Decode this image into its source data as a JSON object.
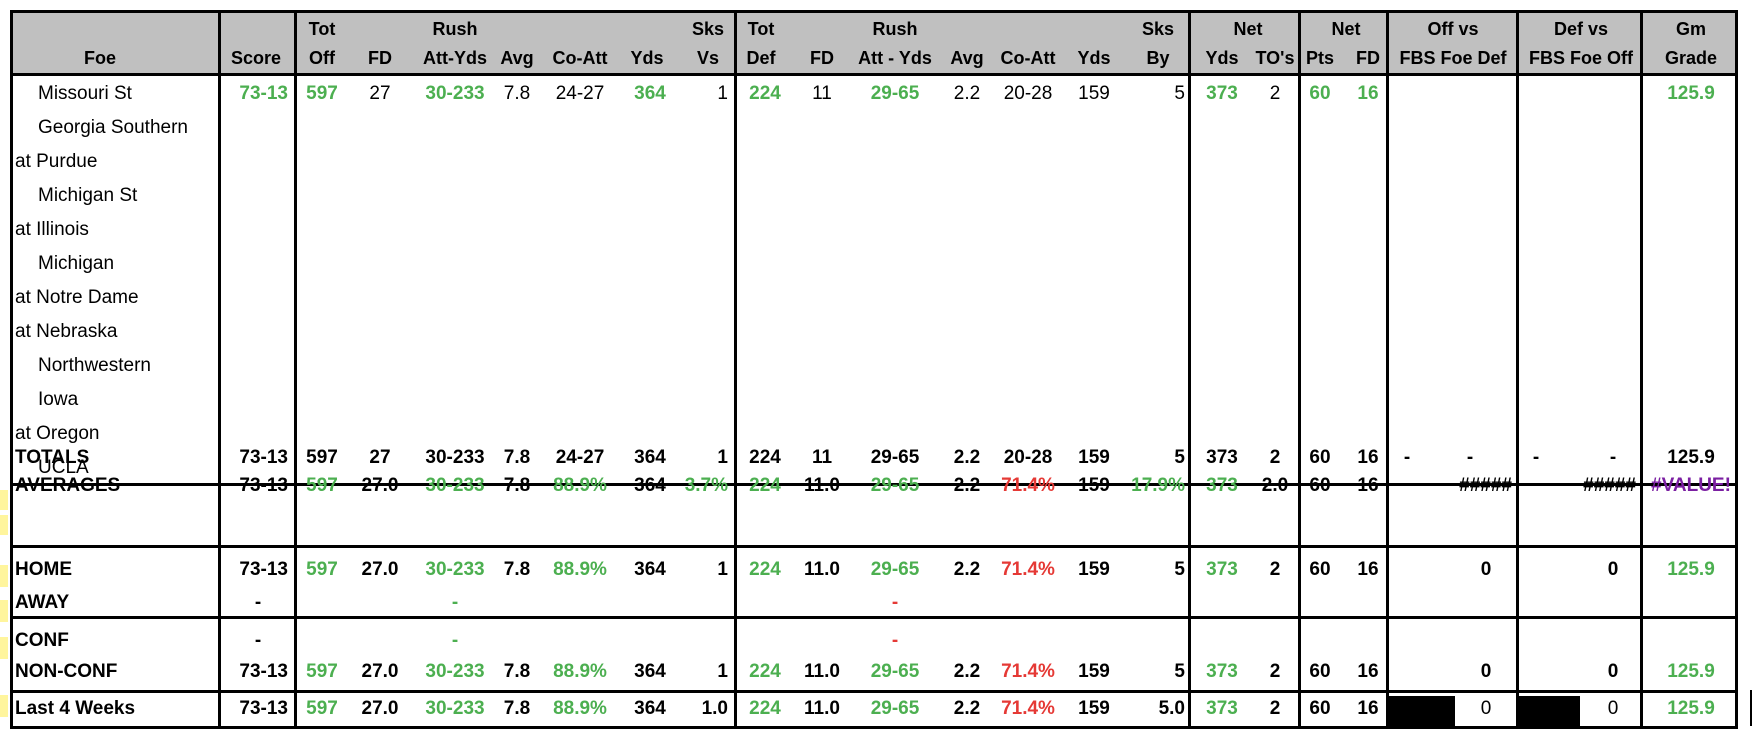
{
  "header": {
    "top": [
      "Tot",
      "Rush",
      "Sks",
      "Tot",
      "Rush",
      "Sks",
      "Net",
      "Net",
      "Off vs",
      "Def vs",
      "Gm"
    ],
    "bottom": [
      "Foe",
      "Score",
      "Off",
      "FD",
      "Att-Yds",
      "Avg",
      "Co-Att",
      "Yds",
      "Vs",
      "Def",
      "FD",
      "Att - Yds",
      "Avg",
      "Co-Att",
      "Yds",
      "By",
      "Yds",
      "TO's",
      "Pts",
      "FD",
      "FBS Foe Def",
      "FBS Foe Off",
      "Grade"
    ]
  },
  "foes": [
    "  Missouri St",
    "  Georgia Southern",
    "at Purdue",
    "  Michigan St",
    "at Illinois",
    "  Michigan",
    "at Notre Dame",
    "at Nebraska",
    "  Northwestern",
    "  Iowa",
    "at Oregon",
    "  UCLA"
  ],
  "game1": {
    "score": "73-13",
    "tot_off": "597",
    "fd": "27",
    "rush": "30-233",
    "avg": "7.8",
    "co_att": "24-27",
    "yds": "364",
    "sks_vs": "1",
    "tot_def": "224",
    "dfd": "11",
    "drush": "29-65",
    "davg": "2.2",
    "dco_att": "20-28",
    "dyds": "159",
    "sks_by": "5",
    "net_yds": "373",
    "tos": "2",
    "net_pts": "60",
    "net_fd": "16",
    "grade": "125.9"
  },
  "totals": {
    "label": "TOTALS",
    "score": "73-13",
    "tot_off": "597",
    "fd": "27",
    "rush": "30-233",
    "avg": "7.8",
    "co_att": "24-27",
    "yds": "364",
    "sks_vs": "1",
    "tot_def": "224",
    "dfd": "11",
    "drush": "29-65",
    "davg": "2.2",
    "dco_att": "20-28",
    "dyds": "159",
    "sks_by": "5",
    "net_yds": "373",
    "tos": "2",
    "net_pts": "60",
    "net_fd": "16",
    "off_a": "-",
    "off_b": "-",
    "def_a": "-",
    "def_b": "-",
    "grade": "125.9"
  },
  "averages": {
    "label": "AVERAGES",
    "score": "73-13",
    "tot_off": "597",
    "fd": "27.0",
    "rush": "30-233",
    "avg": "7.8",
    "co_att": "88.9%",
    "yds": "364",
    "sks_vs": "3.7%",
    "tot_def": "224",
    "dfd": "11.0",
    "drush": "29-65",
    "davg": "2.2",
    "dco_att": "71.4%",
    "dyds": "159",
    "sks_by": "17.9%",
    "net_yds": "373",
    "tos": "2.0",
    "net_pts": "60",
    "net_fd": "16",
    "off": "#####",
    "def": "#####",
    "grade": "#VALUE!"
  },
  "home": {
    "label": "HOME",
    "score": "73-13",
    "tot_off": "597",
    "fd": "27.0",
    "rush": "30-233",
    "avg": "7.8",
    "co_att": "88.9%",
    "yds": "364",
    "sks_vs": "1",
    "tot_def": "224",
    "dfd": "11.0",
    "drush": "29-65",
    "davg": "2.2",
    "dco_att": "71.4%",
    "dyds": "159",
    "sks_by": "5",
    "net_yds": "373",
    "tos": "2",
    "net_pts": "60",
    "net_fd": "16",
    "off": "0",
    "def": "0",
    "grade": "125.9"
  },
  "away": {
    "label": "AWAY",
    "score": "-",
    "rush": "-",
    "drush": "-"
  },
  "conf": {
    "label": "CONF",
    "score": "-",
    "rush": "-",
    "drush": "-"
  },
  "nonconf": {
    "label": "NON-CONF",
    "score": "73-13",
    "tot_off": "597",
    "fd": "27.0",
    "rush": "30-233",
    "avg": "7.8",
    "co_att": "88.9%",
    "yds": "364",
    "sks_vs": "1",
    "tot_def": "224",
    "dfd": "11.0",
    "drush": "29-65",
    "davg": "2.2",
    "dco_att": "71.4%",
    "dyds": "159",
    "sks_by": "5",
    "net_yds": "373",
    "tos": "2",
    "net_pts": "60",
    "net_fd": "16",
    "off": "0",
    "def": "0",
    "grade": "125.9"
  },
  "last4": {
    "label": "Last 4 Weeks",
    "score": "73-13",
    "tot_off": "597",
    "fd": "27.0",
    "rush": "30-233",
    "avg": "7.8",
    "co_att": "88.9%",
    "yds": "364",
    "sks_vs": "1.0",
    "tot_def": "224",
    "dfd": "11.0",
    "drush": "29-65",
    "davg": "2.2",
    "dco_att": "71.4%",
    "dyds": "159",
    "sks_by": "5.0",
    "net_yds": "373",
    "tos": "2",
    "net_pts": "60",
    "net_fd": "16",
    "off": "0",
    "def": "0",
    "grade": "125.9"
  },
  "colors": {
    "header_bg": "#c0c0c0",
    "green": "#4caf50",
    "red": "#e53935",
    "purple": "#7b1fa2",
    "black_fill": "#000000"
  }
}
